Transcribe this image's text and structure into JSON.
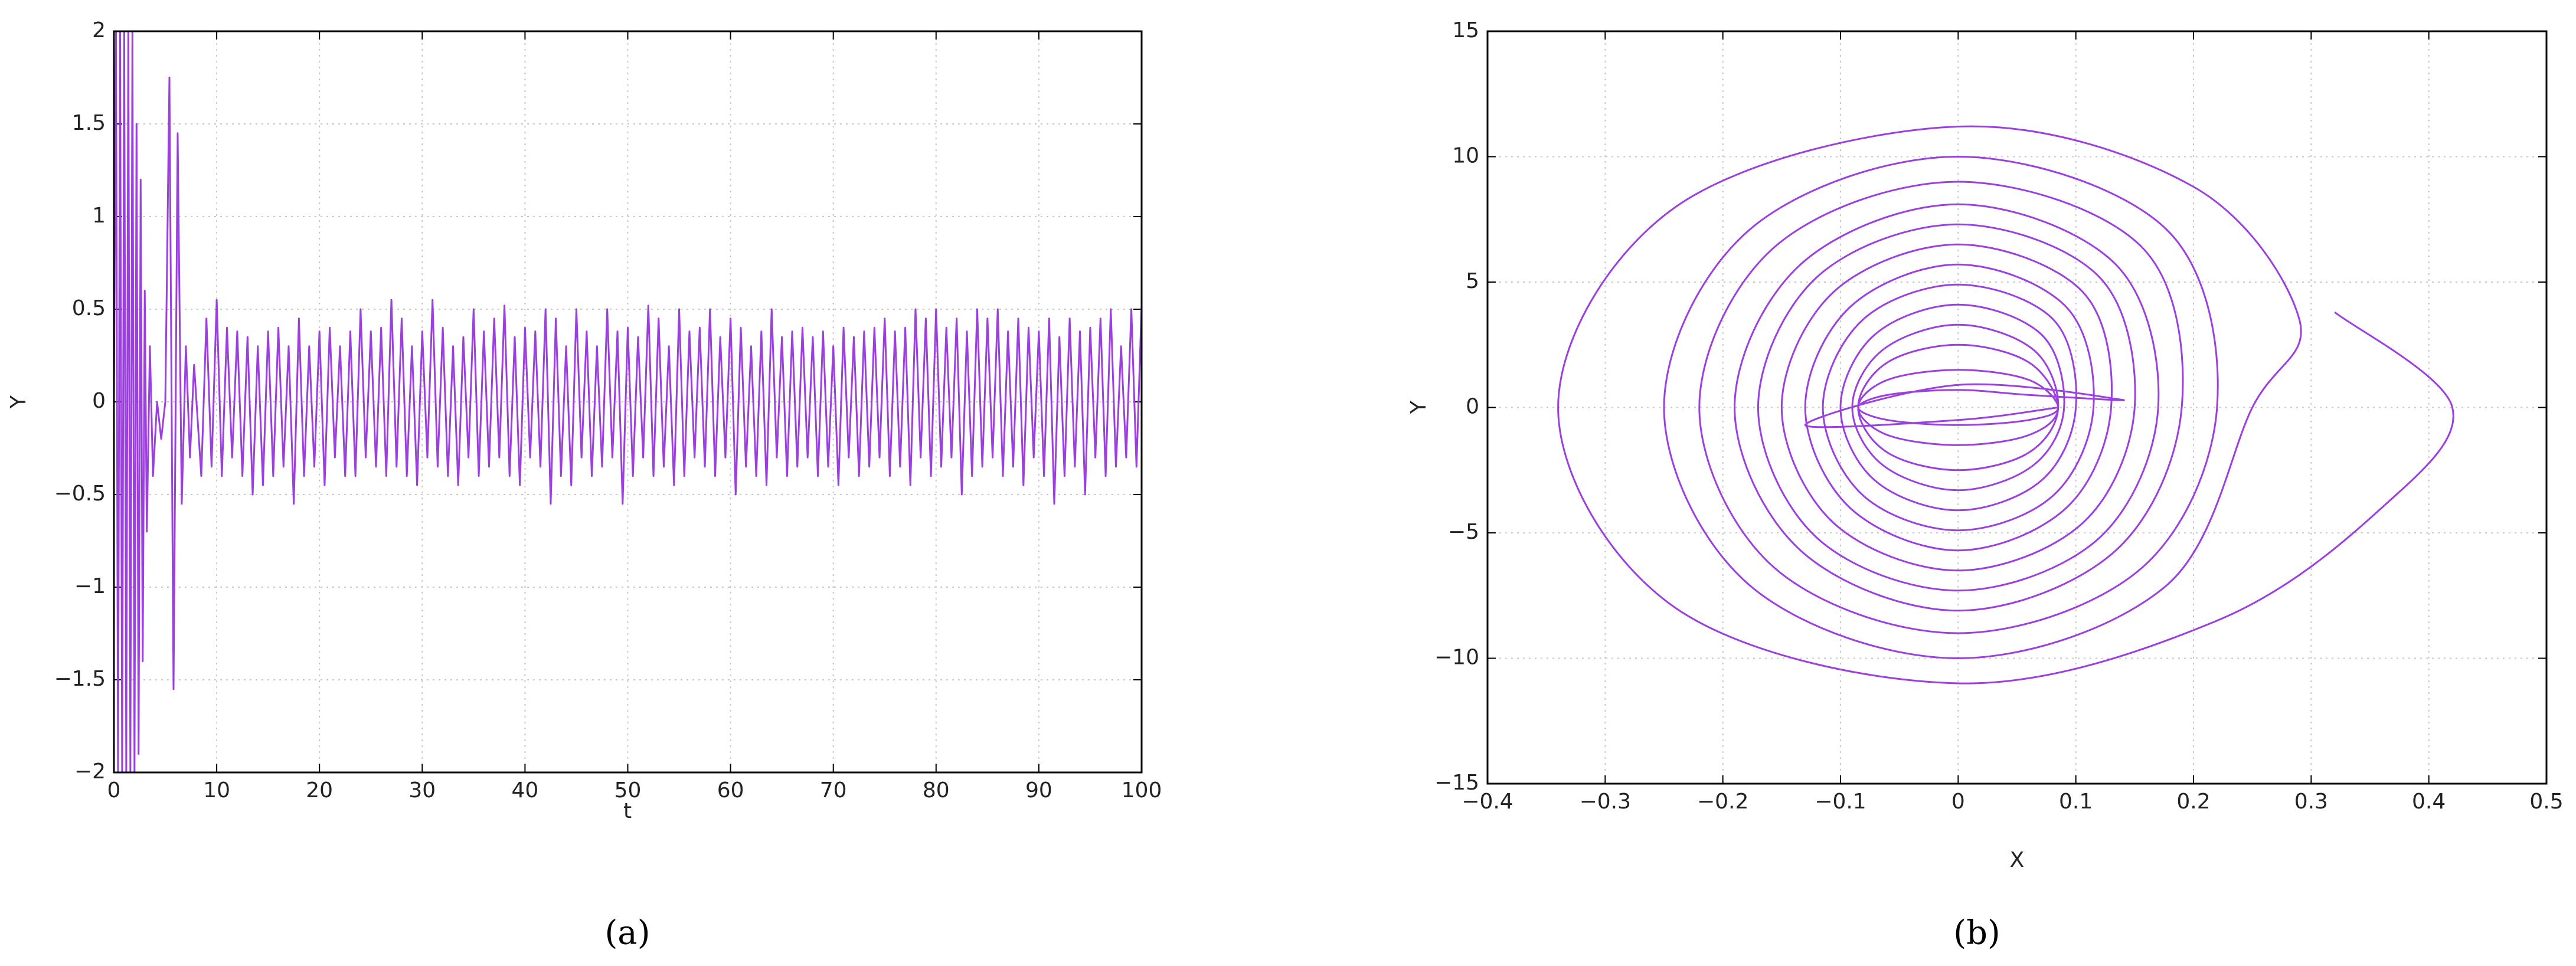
{
  "chart_data": [
    {
      "type": "line",
      "caption": "(a)",
      "x_label": "t",
      "y_label": "Y",
      "color": "#9b3fdf",
      "grid": true,
      "x": [
        0,
        0.2,
        0.4,
        0.6,
        0.8,
        1,
        1.2,
        1.4,
        1.6,
        1.8,
        2,
        2.2,
        2.4,
        2.6,
        2.8,
        3,
        3.2,
        3.5,
        3.8,
        4.2,
        4.6,
        5,
        5.4,
        5.8,
        6.2,
        6.6,
        7,
        7.4,
        7.8,
        8.5,
        9,
        9.5,
        10,
        10.5,
        11,
        11.5,
        12,
        12.5,
        13,
        13.5,
        14,
        14.5,
        15,
        15.5,
        16,
        16.5,
        17,
        17.5,
        18,
        18.5,
        19,
        19.5,
        20,
        20.5,
        21,
        21.5,
        22,
        22.5,
        23,
        23.5,
        24,
        24.5,
        25,
        25.5,
        26,
        26.5,
        27,
        27.5,
        28,
        28.5,
        29,
        29.5,
        30,
        30.5,
        31,
        31.5,
        32,
        32.5,
        33,
        33.5,
        34,
        34.5,
        35,
        35.5,
        36,
        36.5,
        37,
        37.5,
        38,
        38.5,
        39,
        39.5,
        40,
        40.5,
        41,
        41.5,
        42,
        42.5,
        43,
        43.5,
        44,
        44.5,
        45,
        45.5,
        46,
        46.5,
        47,
        47.5,
        48,
        48.5,
        49,
        49.5,
        50,
        50.5,
        51,
        51.5,
        52,
        52.5,
        53,
        53.5,
        54,
        54.5,
        55,
        55.5,
        56,
        56.5,
        57,
        57.5,
        58,
        58.5,
        59,
        59.5,
        60,
        60.5,
        61,
        61.5,
        62,
        62.5,
        63,
        63.5,
        64,
        64.5,
        65,
        65.5,
        66,
        66.5,
        67,
        67.5,
        68,
        68.5,
        69,
        69.5,
        70,
        70.5,
        71,
        71.5,
        72,
        72.5,
        73,
        73.5,
        74,
        74.5,
        75,
        75.5,
        76,
        76.5,
        77,
        77.5,
        78,
        78.5,
        79,
        79.5,
        80,
        80.5,
        81,
        81.5,
        82,
        82.5,
        83,
        83.5,
        84,
        84.5,
        85,
        85.5,
        86,
        86.5,
        87,
        87.5,
        88,
        88.5,
        89,
        89.5,
        90,
        90.5,
        91,
        91.5,
        92,
        92.5,
        93,
        93.5,
        94,
        94.5,
        95,
        95.5,
        96,
        96.5,
        97,
        97.5,
        98,
        98.5,
        99,
        99.5,
        100
      ],
      "values": [
        0,
        2,
        -2,
        2,
        -2,
        2,
        -2,
        2,
        -2,
        2,
        -2,
        1.5,
        -1.9,
        1.2,
        -1.4,
        0.6,
        -0.7,
        0.3,
        -0.4,
        0,
        -0.2,
        0,
        1.75,
        -1.55,
        1.45,
        -0.55,
        0.3,
        -0.3,
        0.2,
        -0.4,
        0.45,
        -0.35,
        0.55,
        -0.4,
        0.4,
        -0.3,
        0.38,
        -0.4,
        0.35,
        -0.5,
        0.3,
        -0.45,
        0.38,
        -0.4,
        0.4,
        -0.35,
        0.3,
        -0.55,
        0.45,
        -0.4,
        0.3,
        -0.35,
        0.38,
        -0.45,
        0.4,
        -0.3,
        0.3,
        -0.4,
        0.38,
        -0.4,
        0.5,
        -0.3,
        0.38,
        -0.35,
        0.4,
        -0.4,
        0.55,
        -0.35,
        0.45,
        -0.4,
        0.3,
        -0.45,
        0.38,
        -0.3,
        0.55,
        -0.35,
        0.4,
        -0.4,
        0.3,
        -0.45,
        0.35,
        -0.3,
        0.5,
        -0.4,
        0.38,
        -0.35,
        0.45,
        -0.3,
        0.52,
        -0.4,
        0.35,
        -0.45,
        0.4,
        -0.3,
        0.38,
        -0.35,
        0.5,
        -0.55,
        0.45,
        -0.4,
        0.3,
        -0.45,
        0.5,
        -0.3,
        0.38,
        -0.4,
        0.3,
        -0.35,
        0.5,
        -0.3,
        0.38,
        -0.55,
        0.4,
        -0.4,
        0.35,
        -0.3,
        0.52,
        -0.4,
        0.45,
        -0.35,
        0.3,
        -0.45,
        0.5,
        -0.4,
        0.38,
        -0.3,
        0.4,
        -0.35,
        0.5,
        -0.4,
        0.35,
        -0.3,
        0.45,
        -0.5,
        0.4,
        -0.35,
        0.3,
        -0.4,
        0.38,
        -0.45,
        0.5,
        -0.3,
        0.35,
        -0.4,
        0.38,
        -0.35,
        0.4,
        -0.3,
        0.35,
        -0.4,
        0.38,
        -0.35,
        0.3,
        -0.45,
        0.4,
        -0.3,
        0.35,
        -0.4,
        0.38,
        -0.35,
        0.4,
        -0.3,
        0.45,
        -0.4,
        0.38,
        -0.35,
        0.4,
        -0.45,
        0.5,
        -0.3,
        0.45,
        -0.4,
        0.5,
        -0.35,
        0.4,
        -0.3,
        0.45,
        -0.5,
        0.38,
        -0.4,
        0.5,
        -0.35,
        0.45,
        -0.3,
        0.5,
        -0.4,
        0.38,
        -0.35,
        0.45,
        -0.45,
        0.4,
        -0.3,
        0.38,
        -0.4,
        0.45,
        -0.55,
        0.35,
        -0.4,
        0.45,
        -0.35,
        0.38,
        -0.5,
        0.4,
        -0.3,
        0.45,
        -0.4,
        0.5,
        -0.35,
        0.3,
        -0.3,
        0.5,
        -0.35,
        0.52
      ],
      "xlim": [
        0,
        100
      ],
      "xticks": [
        0,
        10,
        20,
        30,
        40,
        50,
        60,
        70,
        80,
        90,
        100
      ],
      "ylim": [
        -2,
        2
      ],
      "yticks": [
        {
          "value": -2,
          "label": "−2"
        },
        {
          "value": -1.5,
          "label": "−1.5"
        },
        {
          "value": -1,
          "label": "−1"
        },
        {
          "value": -0.5,
          "label": "−0.5"
        },
        0,
        0.5,
        1,
        1.5,
        2
      ]
    },
    {
      "type": "line",
      "caption": "(b)",
      "x_label": "X",
      "y_label": "Y",
      "color": "#9b3fdf",
      "grid": true,
      "smooth": true,
      "x": [
        0.32,
        0.42,
        0.36,
        0.22,
        0,
        -0.24,
        -0.34,
        -0.24,
        0,
        0.2,
        0.29,
        0.25,
        0.177,
        0,
        -0.177,
        -0.25,
        -0.177,
        0,
        0.177,
        0.22,
        0.156,
        0,
        -0.156,
        -0.22,
        -0.156,
        0,
        0.156,
        0.19,
        0.134,
        0,
        -0.134,
        -0.19,
        -0.134,
        0,
        0.134,
        0.17,
        0.12,
        0,
        -0.12,
        -0.17,
        -0.12,
        0,
        0.12,
        0.15,
        0.106,
        0,
        -0.106,
        -0.15,
        -0.106,
        0,
        0.106,
        0.13,
        0.092,
        0,
        -0.092,
        -0.13,
        -0.092,
        0,
        0.092,
        0.115,
        0.081,
        0,
        -0.081,
        -0.115,
        -0.081,
        0,
        0.081,
        0.1,
        0.071,
        0,
        -0.071,
        -0.1,
        -0.071,
        0,
        0.071,
        0.09,
        0.064,
        0,
        -0.064,
        -0.09,
        -0.064,
        0,
        0.064,
        0.085,
        0.06,
        0,
        -0.06,
        -0.085,
        -0.06,
        0,
        0.06,
        0.085,
        0.06,
        0,
        -0.06,
        -0.085,
        -0.06,
        0,
        0.06,
        0.085,
        0.06,
        0,
        -0.06,
        -0.085,
        -0.06,
        0,
        0.06,
        0.14,
        0,
        -0.13,
        0,
        0.085
      ],
      "values": [
        3.8,
        0,
        -4,
        -8.5,
        -11,
        -8,
        0,
        8,
        11.2,
        8.8,
        3.5,
        0,
        -7.1,
        -10,
        -7.1,
        0,
        7.1,
        10,
        7.1,
        0,
        -6.4,
        -9,
        -6.4,
        0,
        6.4,
        9,
        6.4,
        0,
        -5.7,
        -8.1,
        -5.7,
        0,
        5.7,
        8.1,
        5.7,
        0,
        -5.2,
        -7.3,
        -5.2,
        0,
        5.2,
        7.3,
        5.2,
        0,
        -4.6,
        -6.5,
        -4.6,
        0,
        4.6,
        6.5,
        4.6,
        0,
        -4,
        -5.7,
        -4,
        0,
        4,
        5.7,
        4,
        0,
        -3.5,
        -4.9,
        -3.5,
        0,
        3.5,
        4.9,
        3.5,
        0,
        -2.9,
        -4.1,
        -2.9,
        0,
        2.9,
        4.1,
        2.9,
        0,
        -2.3,
        -3.3,
        -2.3,
        0,
        2.3,
        3.3,
        2.3,
        0,
        -1.8,
        -2.5,
        -1.8,
        0,
        1.8,
        2.5,
        1.8,
        0,
        -1.1,
        -1.5,
        -1.1,
        0,
        1.1,
        1.5,
        1.1,
        0,
        -0.5,
        -0.7,
        -0.5,
        0,
        0.5,
        0.7,
        0.5,
        0.3,
        0.9,
        -0.7,
        -0.5,
        0
      ],
      "xlim": [
        -0.4,
        0.5
      ],
      "xticks": [
        {
          "value": -0.4,
          "label": "−0.4"
        },
        {
          "value": -0.3,
          "label": "−0.3"
        },
        {
          "value": -0.2,
          "label": "−0.2"
        },
        {
          "value": -0.1,
          "label": "−0.1"
        },
        0,
        0.1,
        0.2,
        0.3,
        0.4,
        0.5
      ],
      "ylim": [
        -15,
        15
      ],
      "yticks": [
        {
          "value": -15,
          "label": "−15"
        },
        {
          "value": -10,
          "label": "−10"
        },
        {
          "value": -5,
          "label": "−5"
        },
        0,
        5,
        10,
        15
      ]
    }
  ]
}
